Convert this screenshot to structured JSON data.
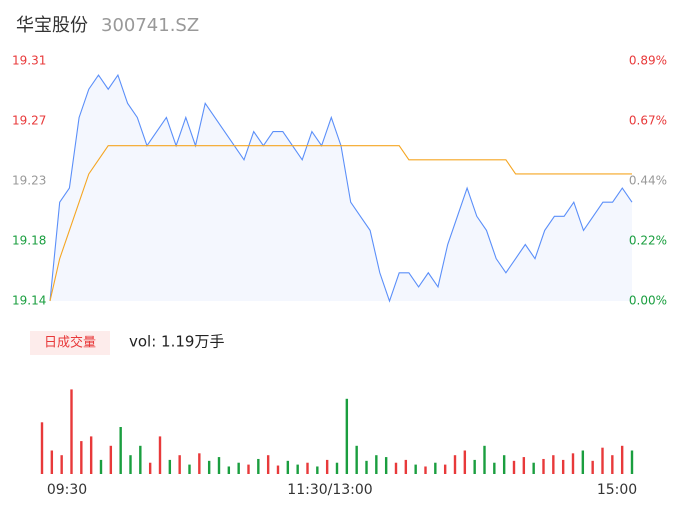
{
  "chart_data": [
    {
      "type": "line",
      "title": "华宝股份",
      "subtitle": "300741.SZ",
      "x": [
        0,
        4,
        8,
        12,
        16,
        20,
        24,
        28,
        32,
        36,
        40,
        44,
        48,
        52,
        56,
        60,
        64,
        68,
        72,
        76,
        80,
        84,
        88,
        92,
        96,
        100,
        104,
        108,
        112,
        116,
        120,
        124,
        128,
        132,
        136,
        140,
        144,
        148,
        152,
        156,
        160,
        164,
        168,
        172,
        176,
        180,
        184,
        188,
        192,
        196,
        200,
        204,
        208,
        212,
        216,
        220,
        224,
        228,
        232,
        236,
        240
      ],
      "xlim": [
        0,
        240
      ],
      "ylim": [
        19.14,
        19.31
      ],
      "yticks": [
        {
          "value": 19.31,
          "label": "19.31"
        },
        {
          "value": 19.2675,
          "label": "19.27"
        },
        {
          "value": 19.225,
          "label": "19.23"
        },
        {
          "value": 19.1825,
          "label": "19.18"
        },
        {
          "value": 19.14,
          "label": "19.14"
        }
      ],
      "y2lim": [
        0,
        0.89
      ],
      "y2ticks": [
        {
          "value": 0.89,
          "label": "0.89%"
        },
        {
          "value": 0.6675,
          "label": "0.67%"
        },
        {
          "value": 0.445,
          "label": "0.44%"
        },
        {
          "value": 0.2225,
          "label": "0.22%"
        },
        {
          "value": 0,
          "label": "0.00%"
        }
      ],
      "up_color": "#e8393a",
      "down_color": "#1a9e3f",
      "flat_color": "#999999",
      "series": [
        {
          "color": "#5b8ff9",
          "area": true,
          "values": [
            19.14,
            19.21,
            19.22,
            19.27,
            19.29,
            19.3,
            19.29,
            19.3,
            19.28,
            19.27,
            19.25,
            19.26,
            19.27,
            19.25,
            19.27,
            19.25,
            19.28,
            19.27,
            19.26,
            19.25,
            19.24,
            19.26,
            19.25,
            19.26,
            19.26,
            19.25,
            19.24,
            19.26,
            19.25,
            19.27,
            19.25,
            19.21,
            19.2,
            19.19,
            19.16,
            19.14,
            19.16,
            19.16,
            19.15,
            19.16,
            19.15,
            19.18,
            19.2,
            19.22,
            19.2,
            19.19,
            19.17,
            19.16,
            19.17,
            19.18,
            19.17,
            19.19,
            19.2,
            19.2,
            19.21,
            19.19,
            19.2,
            19.21,
            19.21,
            19.22,
            19.21
          ]
        },
        {
          "color": "#f5a623",
          "area": false,
          "values": [
            19.14,
            19.17,
            19.19,
            19.21,
            19.23,
            19.24,
            19.25,
            19.25,
            19.25,
            19.25,
            19.25,
            19.25,
            19.25,
            19.25,
            19.25,
            19.25,
            19.25,
            19.25,
            19.25,
            19.25,
            19.25,
            19.25,
            19.25,
            19.25,
            19.25,
            19.25,
            19.25,
            19.25,
            19.25,
            19.25,
            19.25,
            19.25,
            19.25,
            19.25,
            19.25,
            19.25,
            19.25,
            19.24,
            19.24,
            19.24,
            19.24,
            19.24,
            19.24,
            19.24,
            19.24,
            19.24,
            19.24,
            19.24,
            19.23,
            19.23,
            19.23,
            19.23,
            19.23,
            19.23,
            19.23,
            19.23,
            19.23,
            19.23,
            19.23,
            19.23,
            19.23
          ]
        }
      ]
    },
    {
      "type": "bar",
      "legend": "日成交量",
      "summary": "vol: 1.19万手",
      "xlim": [
        0,
        240
      ],
      "xticks": [
        {
          "value": 0,
          "label": "09:30"
        },
        {
          "value": 120,
          "label": "11:30/13:00"
        },
        {
          "value": 240,
          "label": "15:00"
        }
      ],
      "ylim": [
        0,
        100
      ],
      "values": [
        55,
        25,
        20,
        90,
        35,
        40,
        15,
        30,
        50,
        20,
        30,
        12,
        40,
        15,
        20,
        10,
        22,
        14,
        18,
        8,
        12,
        10,
        16,
        20,
        9,
        14,
        10,
        12,
        8,
        15,
        12,
        80,
        30,
        14,
        20,
        18,
        12,
        15,
        10,
        8,
        12,
        10,
        20,
        25,
        15,
        30,
        12,
        20,
        14,
        18,
        12,
        16,
        20,
        15,
        22,
        25,
        14,
        28,
        20,
        30,
        25
      ]
    }
  ]
}
